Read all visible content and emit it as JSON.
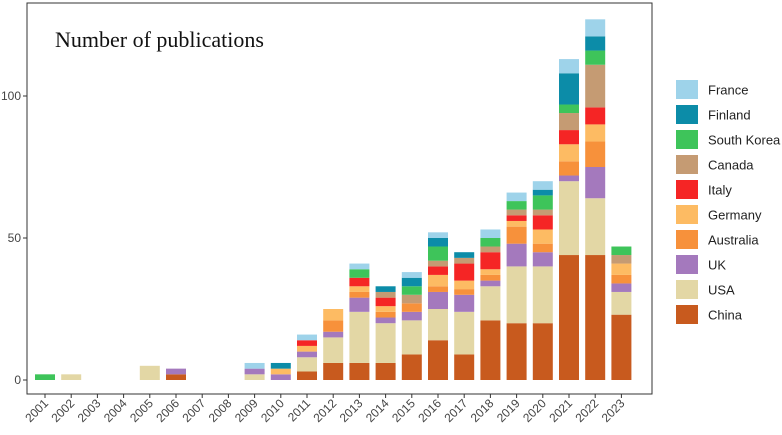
{
  "chart_data": {
    "type": "bar",
    "stacked": true,
    "title": "Number of publications",
    "xlabel": "",
    "ylabel": "",
    "ylim": [
      0,
      133
    ],
    "yticks": [
      0,
      50,
      100
    ],
    "grid": false,
    "legend_position": "right",
    "categories": [
      "2001",
      "2002",
      "2003",
      "2004",
      "2005",
      "2006",
      "2007",
      "2008",
      "2009",
      "2010",
      "2011",
      "2012",
      "2013",
      "2014",
      "2015",
      "2016",
      "2017",
      "2018",
      "2019",
      "2020",
      "2021",
      "2022",
      "2023"
    ],
    "series": [
      {
        "name": "China",
        "color": "#C85A1E",
        "values": [
          0,
          0,
          0,
          0,
          0,
          2,
          0,
          0,
          0,
          0,
          3,
          6,
          6,
          6,
          9,
          14,
          9,
          21,
          20,
          20,
          44,
          44,
          23
        ]
      },
      {
        "name": "USA",
        "color": "#E3D7A5",
        "values": [
          0,
          2,
          0,
          0,
          5,
          0,
          0,
          0,
          2,
          0,
          5,
          9,
          18,
          14,
          12,
          11,
          15,
          12,
          20,
          20,
          26,
          20,
          8
        ]
      },
      {
        "name": "UK",
        "color": "#A479BD",
        "values": [
          0,
          0,
          0,
          0,
          0,
          2,
          0,
          0,
          2,
          2,
          2,
          2,
          5,
          2,
          3,
          6,
          6,
          2,
          8,
          5,
          2,
          11,
          3
        ]
      },
      {
        "name": "Australia",
        "color": "#F7913B",
        "values": [
          0,
          0,
          0,
          0,
          0,
          0,
          0,
          0,
          0,
          0,
          0,
          4,
          2,
          2,
          3,
          2,
          2,
          2,
          6,
          3,
          5,
          9,
          3
        ]
      },
      {
        "name": "Germany",
        "color": "#FDBB63",
        "values": [
          0,
          0,
          0,
          0,
          0,
          0,
          0,
          0,
          0,
          2,
          2,
          4,
          2,
          2,
          0,
          4,
          3,
          2,
          2,
          5,
          6,
          6,
          4
        ]
      },
      {
        "name": "Italy",
        "color": "#F52525",
        "values": [
          0,
          0,
          0,
          0,
          0,
          0,
          0,
          0,
          0,
          0,
          2,
          0,
          3,
          3,
          0,
          3,
          6,
          6,
          2,
          5,
          5,
          6,
          0
        ]
      },
      {
        "name": "Canada",
        "color": "#C59B73",
        "values": [
          0,
          0,
          0,
          0,
          0,
          0,
          0,
          0,
          0,
          0,
          0,
          0,
          0,
          2,
          3,
          2,
          2,
          2,
          2,
          2,
          6,
          15,
          3
        ]
      },
      {
        "name": "South Korea",
        "color": "#3EC45A",
        "values": [
          2,
          0,
          0,
          0,
          0,
          0,
          0,
          0,
          0,
          0,
          0,
          0,
          3,
          0,
          3,
          5,
          0,
          3,
          3,
          5,
          3,
          5,
          3
        ]
      },
      {
        "name": "Finland",
        "color": "#0C8CA8",
        "values": [
          0,
          0,
          0,
          0,
          0,
          0,
          0,
          0,
          0,
          2,
          0,
          0,
          0,
          2,
          3,
          3,
          2,
          0,
          0,
          2,
          11,
          5,
          0
        ]
      },
      {
        "name": "France",
        "color": "#9ED3EA",
        "values": [
          0,
          0,
          0,
          0,
          0,
          0,
          0,
          0,
          2,
          0,
          2,
          0,
          2,
          0,
          2,
          2,
          0,
          3,
          3,
          3,
          5,
          6,
          0
        ]
      }
    ],
    "legend_order": [
      "France",
      "Finland",
      "South Korea",
      "Canada",
      "Italy",
      "Germany",
      "Australia",
      "UK",
      "USA",
      "China"
    ]
  }
}
